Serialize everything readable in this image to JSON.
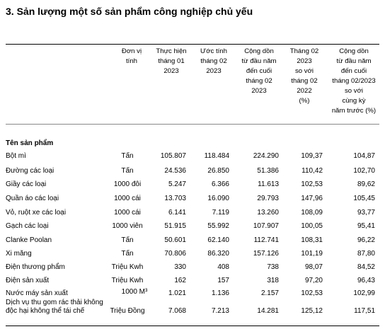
{
  "title": "3. Sản lượng một số sản phẩm công nghiệp chủ yếu",
  "headers": {
    "unit": "Đơn vị\ntính",
    "c1": "Thực hiện\ntháng 01\n2023",
    "c2": "Ước tính\ntháng 02\n2023",
    "c3": "Cộng dồn\ntừ đầu năm\nđến cuối\ntháng 02\n2023",
    "c4": "Tháng 02\n2023\nso với\ntháng 02\n2022\n(%)",
    "c5": "Cộng dồn\ntừ đầu năm\nđến cuối\ntháng 02/2023\nso với\ncùng kỳ\nnăm trước (%)"
  },
  "section_label": "Tên sản phẩm",
  "rows": [
    {
      "name": "Bột mì",
      "unit": "Tấn",
      "c1": "105.807",
      "c2": "118.484",
      "c3": "224.290",
      "c4": "109,37",
      "c5": "104,87"
    },
    {
      "name": "Đường các loại",
      "unit": "Tấn",
      "c1": "24.536",
      "c2": "26.850",
      "c3": "51.386",
      "c4": "110,42",
      "c5": "102,70"
    },
    {
      "name": "Giầy các loại",
      "unit": "1000 đôi",
      "c1": "5.247",
      "c2": "6.366",
      "c3": "11.613",
      "c4": "102,53",
      "c5": "89,62"
    },
    {
      "name": "Quần áo các loại",
      "unit": "1000 cái",
      "c1": "13.703",
      "c2": "16.090",
      "c3": "29.793",
      "c4": "147,96",
      "c5": "105,45"
    },
    {
      "name": "Vỏ, ruột xe các loại",
      "unit": "1000 cái",
      "c1": "6.141",
      "c2": "7.119",
      "c3": "13.260",
      "c4": "108,09",
      "c5": "93,77"
    },
    {
      "name": "Gạch các loại",
      "unit": "1000 viên",
      "c1": "51.915",
      "c2": "55.992",
      "c3": "107.907",
      "c4": "100,05",
      "c5": "95,41"
    },
    {
      "name": "Clanke Poolan",
      "unit": "Tấn",
      "c1": "50.601",
      "c2": "62.140",
      "c3": "112.741",
      "c4": "108,31",
      "c5": "96,22"
    },
    {
      "name": "Xi măng",
      "unit": "Tấn",
      "c1": "70.806",
      "c2": "86.320",
      "c3": "157.126",
      "c4": "101,19",
      "c5": "87,80"
    },
    {
      "name": "Điện thương phẩm",
      "unit": "Triệu Kwh",
      "c1": "330",
      "c2": "408",
      "c3": "738",
      "c4": "98,07",
      "c5": "84,52"
    },
    {
      "name": "Điện sản xuất",
      "unit": "Triệu Kwh",
      "c1": "162",
      "c2": "157",
      "c3": "318",
      "c4": "97,20",
      "c5": "96,43"
    },
    {
      "name": "Nước máy sản xuất",
      "unit": "1000 M³",
      "c1": "1.021",
      "c2": "1.136",
      "c3": "2.157",
      "c4": "102,53",
      "c5": "102,99"
    },
    {
      "name": "Dịch vụ thu gom rác thải không độc hại không thể tái chế",
      "name_l1": "Dịch vụ thu gom rác thải không",
      "name_l2": "độc hại không thể tái chế",
      "unit": "Triệu Đồng",
      "c1": "7.068",
      "c2": "7.213",
      "c3": "14.281",
      "c4": "125,12",
      "c5": "117,51"
    }
  ]
}
